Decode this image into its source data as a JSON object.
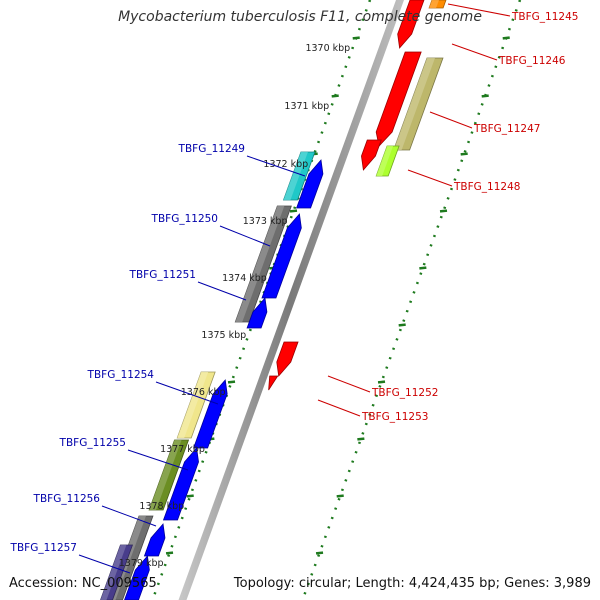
{
  "title": "Mycobacterium tuberculosis F11, complete genome",
  "accession": "Accession: NC_009565",
  "topology": "Topology: circular; Length: 4,424,435 bp; Genes: 3,989",
  "colors": {
    "forward_label": "#0000aa",
    "reverse_label": "#cc0000",
    "tick": "#1e7a1e",
    "backbone": "#888888"
  },
  "ticks": [
    "1370 kbp",
    "1371 kbp",
    "1372 kbp",
    "1373 kbp",
    "1374 kbp",
    "1375 kbp",
    "1376 kbp",
    "1377 kbp",
    "1378 kbp",
    "1379 kbp"
  ],
  "reverse_genes": [
    {
      "label": "TBFG_11245",
      "color": "#ff8c00"
    },
    {
      "label": "TBFG_11246",
      "color": "#ff0000"
    },
    {
      "label": "TBFG_11247",
      "color": "#bdb76b"
    },
    {
      "label": "TBFG_11248",
      "color": "#adff2f"
    },
    {
      "label": "TBFG_11252",
      "color": "#ff0000"
    },
    {
      "label": "TBFG_11253",
      "color": "#ff0000"
    }
  ],
  "forward_genes": [
    {
      "label": "TBFG_11249",
      "color": "#20c8c8"
    },
    {
      "label": "TBFG_11250",
      "color": "#6e6e6e"
    },
    {
      "label": "TBFG_11251",
      "color": "#6e6e6e"
    },
    {
      "label": "TBFG_11254",
      "color": "#f0e68c"
    },
    {
      "label": "TBFG_11255",
      "color": "#6b8e23"
    },
    {
      "label": "TBFG_11256",
      "color": "#6e6e6e"
    },
    {
      "label": "TBFG_11257",
      "color": "#483d8b"
    }
  ]
}
